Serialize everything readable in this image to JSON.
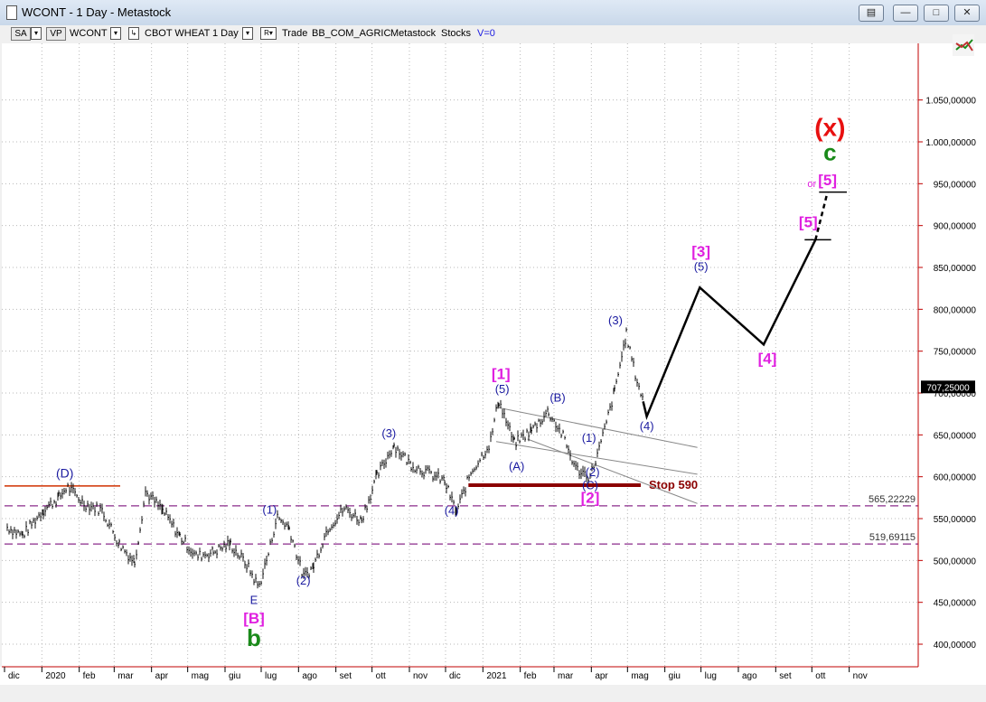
{
  "window": {
    "title": "WCONT - 1 Day - Metastock"
  },
  "toolbar": {
    "sa": "SA",
    "vp": "VP",
    "symbol": "WCONT",
    "exchange": "CBOT WHEAT",
    "period": "1 Day",
    "trade": "Trade",
    "sector": "BB_COM_AGRIC",
    "source": "Metastock",
    "type": "Stocks",
    "volume": "V=0"
  },
  "chart_data": {
    "type": "line",
    "x_ticks": [
      "dic",
      "2020",
      "feb",
      "mar",
      "apr",
      "mag",
      "giu",
      "lug",
      "ago",
      "set",
      "ott",
      "nov",
      "dic",
      "2021",
      "feb",
      "mar",
      "apr",
      "mag",
      "giu",
      "lug",
      "ago",
      "set",
      "ott",
      "nov"
    ],
    "y_ticks": [
      "1.050,00000",
      "1.000,00000",
      "950,00000",
      "900,00000",
      "850,00000",
      "800,00000",
      "750,00000",
      "700,00000",
      "650,00000",
      "600,00000",
      "550,00000",
      "500,00000",
      "450,00000",
      "400,00000"
    ],
    "ylim": [
      370,
      1100
    ],
    "price_series": {
      "name": "WCONT",
      "x": [
        "2019-12-03",
        "2019-12-16",
        "2020-01-02",
        "2020-01-15",
        "2020-01-22",
        "2020-02-05",
        "2020-02-20",
        "2020-03-05",
        "2020-03-18",
        "2020-03-27",
        "2020-04-10",
        "2020-04-24",
        "2020-05-08",
        "2020-05-22",
        "2020-06-05",
        "2020-06-19",
        "2020-06-29",
        "2020-07-07",
        "2020-07-14",
        "2020-07-24",
        "2020-08-05",
        "2020-08-13",
        "2020-08-25",
        "2020-09-08",
        "2020-09-22",
        "2020-10-05",
        "2020-10-19",
        "2020-11-02",
        "2020-11-16",
        "2020-11-30",
        "2020-12-10",
        "2020-12-22",
        "2021-01-07",
        "2021-01-14",
        "2021-01-27",
        "2021-02-10",
        "2021-02-24",
        "2021-03-08",
        "2021-03-19",
        "2021-03-31",
        "2021-04-09",
        "2021-04-20",
        "2021-04-30",
        "2021-05-07",
        "2021-05-14"
      ],
      "y": [
        540,
        530,
        560,
        575,
        588,
        568,
        560,
        520,
        498,
        582,
        560,
        530,
        505,
        510,
        520,
        495,
        468,
        508,
        552,
        540,
        480,
        492,
        538,
        562,
        548,
        600,
        638,
        615,
        605,
        595,
        558,
        605,
        640,
        692,
        640,
        655,
        678,
        650,
        610,
        600,
        640,
        700,
        770,
        725,
        690
      ]
    },
    "projection": {
      "name": "wave projection",
      "x": [
        "2021-05-14",
        "2021-05-17",
        "2021-06-30",
        "2021-08-22",
        "2021-10-04"
      ],
      "y": [
        690,
        672,
        826,
        758,
        883
      ],
      "extension": {
        "x": [
          "2021-10-04",
          "2021-10-14"
        ],
        "y": [
          883,
          940
        ]
      }
    },
    "channel_lines": [
      {
        "x": [
          "2021-01-12",
          "2021-06-28"
        ],
        "y": [
          683,
          635
        ]
      },
      {
        "x": [
          "2021-01-12",
          "2021-06-28"
        ],
        "y": [
          642,
          603
        ]
      },
      {
        "x": [
          "2021-02-07",
          "2021-06-28"
        ],
        "y": [
          645,
          568
        ]
      }
    ],
    "horizontal_lines": [
      {
        "name": "resistance-d",
        "x": [
          "2019-12-01",
          "2020-03-06"
        ],
        "y": 589,
        "color": "#d03000"
      },
      {
        "name": "stop-590",
        "label": "Stop 590",
        "x": [
          "2020-12-20",
          "2021-05-12"
        ],
        "y": 590,
        "color": "#8b0000"
      },
      {
        "name": "level-565",
        "label": "565,22229",
        "x": [
          "2019-12-01",
          "2021-12-31"
        ],
        "y": 565.22229,
        "color": "#8b2b8b",
        "dashed": true
      },
      {
        "name": "level-519",
        "label": "519,69115",
        "x": [
          "2019-12-01",
          "2021-12-31"
        ],
        "y": 519.69115,
        "color": "#8b2b8b",
        "dashed": true
      },
      {
        "name": "target-5-low",
        "x": [
          "2021-09-25",
          "2021-10-17"
        ],
        "y": 883,
        "color": "#000000"
      },
      {
        "name": "target-5-high",
        "x": [
          "2021-10-07",
          "2021-10-30"
        ],
        "y": 940,
        "color": "#000000"
      }
    ],
    "last_price": {
      "label": "707,25000",
      "y": 707.25
    },
    "wave_labels": [
      {
        "text": "(D)",
        "x": "2020-01-20",
        "y": 599,
        "color": "#1a1aa0",
        "size": 14
      },
      {
        "text": "(1)",
        "x": "2020-07-08",
        "y": 556,
        "color": "#1a1aa0",
        "size": 13
      },
      {
        "text": "(2)",
        "x": "2020-08-05",
        "y": 471,
        "color": "#1a1aa0",
        "size": 13
      },
      {
        "text": "E",
        "x": "2020-06-25",
        "y": 448,
        "color": "#1a1aa0",
        "size": 13
      },
      {
        "text": "[B]",
        "x": "2020-06-25",
        "y": 425,
        "color": "#e020e0",
        "size": 17
      },
      {
        "text": "b",
        "x": "2020-06-25",
        "y": 398,
        "color": "#1a8a1a",
        "size": 26
      },
      {
        "text": "(3)",
        "x": "2020-10-15",
        "y": 647,
        "color": "#1a1aa0",
        "size": 13
      },
      {
        "text": "(4)",
        "x": "2020-12-06",
        "y": 555,
        "color": "#1a1aa0",
        "size": 13
      },
      {
        "text": "[1]",
        "x": "2021-01-16",
        "y": 717,
        "color": "#e020e0",
        "size": 17
      },
      {
        "text": "(5)",
        "x": "2021-01-17",
        "y": 700,
        "color": "#1a1aa0",
        "size": 13
      },
      {
        "text": "(A)",
        "x": "2021-01-29",
        "y": 608,
        "color": "#1a1aa0",
        "size": 13
      },
      {
        "text": "(B)",
        "x": "2021-03-04",
        "y": 690,
        "color": "#1a1aa0",
        "size": 13
      },
      {
        "text": "(1)",
        "x": "2021-03-30",
        "y": 642,
        "color": "#1a1aa0",
        "size": 13
      },
      {
        "text": "(2)",
        "x": "2021-04-02",
        "y": 601,
        "color": "#1a1aa0",
        "size": 13
      },
      {
        "text": "(C)",
        "x": "2021-03-31",
        "y": 585,
        "color": "#1a1aa0",
        "size": 13
      },
      {
        "text": "[2]",
        "x": "2021-03-31",
        "y": 569,
        "color": "#e020e0",
        "size": 17
      },
      {
        "text": "(3)",
        "x": "2021-04-21",
        "y": 782,
        "color": "#1a1aa0",
        "size": 13
      },
      {
        "text": "(4)",
        "x": "2021-05-17",
        "y": 656,
        "color": "#1a1aa0",
        "size": 13
      },
      {
        "text": "[3]",
        "x": "2021-07-01",
        "y": 863,
        "color": "#e020e0",
        "size": 17
      },
      {
        "text": "(5)",
        "x": "2021-07-01",
        "y": 846,
        "color": "#1a1aa0",
        "size": 13
      },
      {
        "text": "[4]",
        "x": "2021-08-25",
        "y": 735,
        "color": "#e020e0",
        "size": 17
      },
      {
        "text": "[5]",
        "x": "2021-09-28",
        "y": 898,
        "color": "#e020e0",
        "size": 17
      },
      {
        "text": "or",
        "x": "2021-10-01",
        "y": 946,
        "color": "#e020e0",
        "size": 11
      },
      {
        "text": "[5]",
        "x": "2021-10-14",
        "y": 948,
        "color": "#e020e0",
        "size": 17
      },
      {
        "text": "c",
        "x": "2021-10-16",
        "y": 978,
        "color": "#1a8a1a",
        "size": 26
      },
      {
        "text": "(x)",
        "x": "2021-10-16",
        "y": 1007,
        "color": "#e81010",
        "size": 28
      }
    ]
  }
}
